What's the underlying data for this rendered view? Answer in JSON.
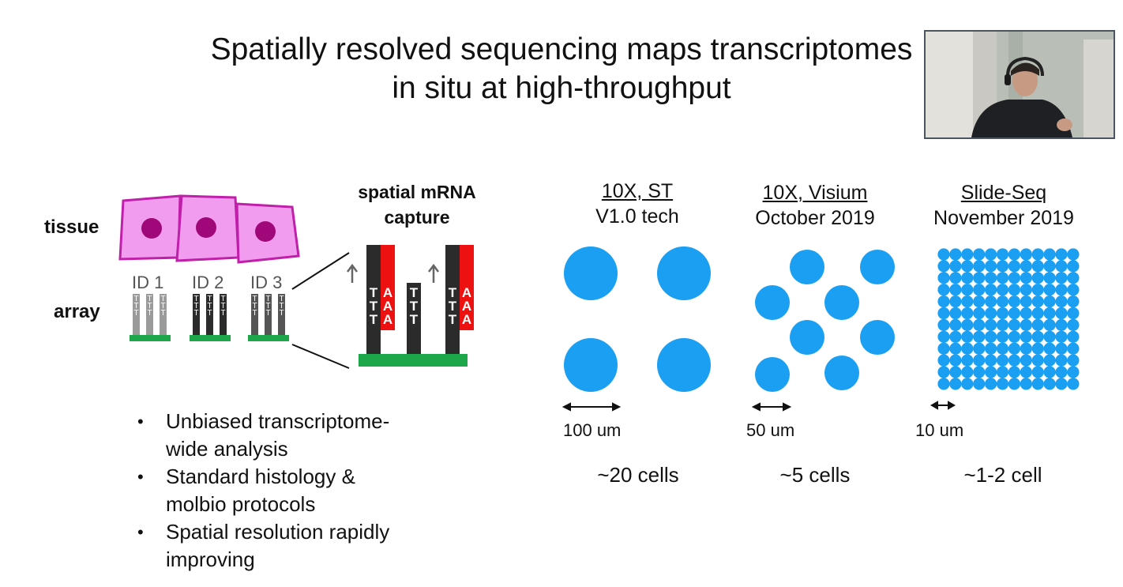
{
  "slide": {
    "title_line1": "Spatially resolved sequencing maps transcriptomes",
    "title_line2": "in situ at high-throughput"
  },
  "diagram": {
    "tissue_label": "tissue",
    "array_label": "array",
    "ids": [
      "ID 1",
      "ID 2",
      "ID 3"
    ],
    "capture_title_line1": "spatial mRNA",
    "capture_title_line2": "capture",
    "strand_T": "T",
    "strand_A": "A",
    "colors": {
      "cell_fill": "#f29cef",
      "cell_border": "#c01fa9",
      "nucleus": "#a0087a",
      "base": "#1ea74a",
      "polyA": "#ee1111",
      "id1": "#9a9a9a",
      "id2": "#2b2b2b",
      "id3": "#555555"
    }
  },
  "technologies": [
    {
      "name": "10X, ST",
      "subtitle": "V1.0 tech",
      "scale": "100 um",
      "cells": "~20 cells"
    },
    {
      "name": "10X, Visium",
      "subtitle": "October 2019",
      "scale": "50 um",
      "cells": "~5 cells"
    },
    {
      "name": "Slide-Seq",
      "subtitle": "November 2019",
      "scale": "10 um",
      "cells": "~1-2 cell"
    }
  ],
  "spot_color": "#1a9ff2",
  "bullets": [
    {
      "line1": "Unbiased transcriptome-",
      "line2": "wide analysis"
    },
    {
      "line1": "Standard histology &",
      "line2": "molbio protocols"
    },
    {
      "line1": "Spatial resolution rapidly",
      "line2": "improving"
    }
  ]
}
